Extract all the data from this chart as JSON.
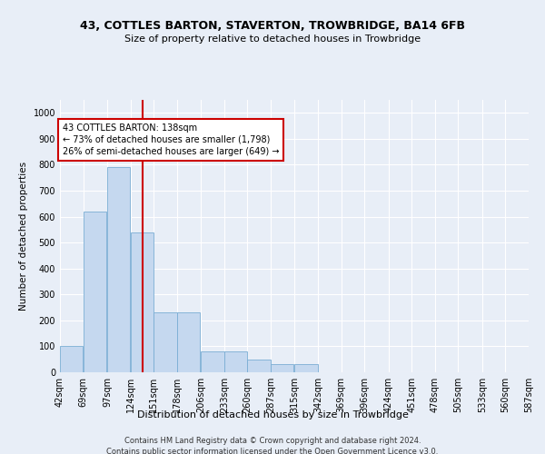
{
  "title": "43, COTTLES BARTON, STAVERTON, TROWBRIDGE, BA14 6FB",
  "subtitle": "Size of property relative to detached houses in Trowbridge",
  "xlabel": "Distribution of detached houses by size in Trowbridge",
  "ylabel": "Number of detached properties",
  "footer_line1": "Contains HM Land Registry data © Crown copyright and database right 2024.",
  "footer_line2": "Contains public sector information licensed under the Open Government Licence v3.0.",
  "bin_edges": [
    42,
    69,
    97,
    124,
    151,
    178,
    206,
    233,
    260,
    287,
    315,
    342,
    369,
    396,
    424,
    451,
    478,
    505,
    533,
    560,
    587
  ],
  "bin_counts": [
    100,
    620,
    790,
    540,
    230,
    230,
    80,
    80,
    50,
    30,
    30,
    0,
    0,
    0,
    0,
    0,
    0,
    0,
    0,
    0
  ],
  "bar_color": "#c5d8ef",
  "bar_edge_color": "#7aadd4",
  "vline_x": 138,
  "vline_color": "#cc0000",
  "annotation_text": "43 COTTLES BARTON: 138sqm\n← 73% of detached houses are smaller (1,798)\n26% of semi-detached houses are larger (649) →",
  "annotation_box_color": "#ffffff",
  "annotation_box_edge": "#cc0000",
  "ylim": [
    0,
    1050
  ],
  "yticks": [
    0,
    100,
    200,
    300,
    400,
    500,
    600,
    700,
    800,
    900,
    1000
  ],
  "background_color": "#e8eef7",
  "grid_color": "#ffffff",
  "title_fontsize": 9,
  "subtitle_fontsize": 8,
  "ylabel_fontsize": 7.5,
  "xlabel_fontsize": 8,
  "tick_fontsize": 7,
  "footer_fontsize": 6,
  "annot_fontsize": 7
}
